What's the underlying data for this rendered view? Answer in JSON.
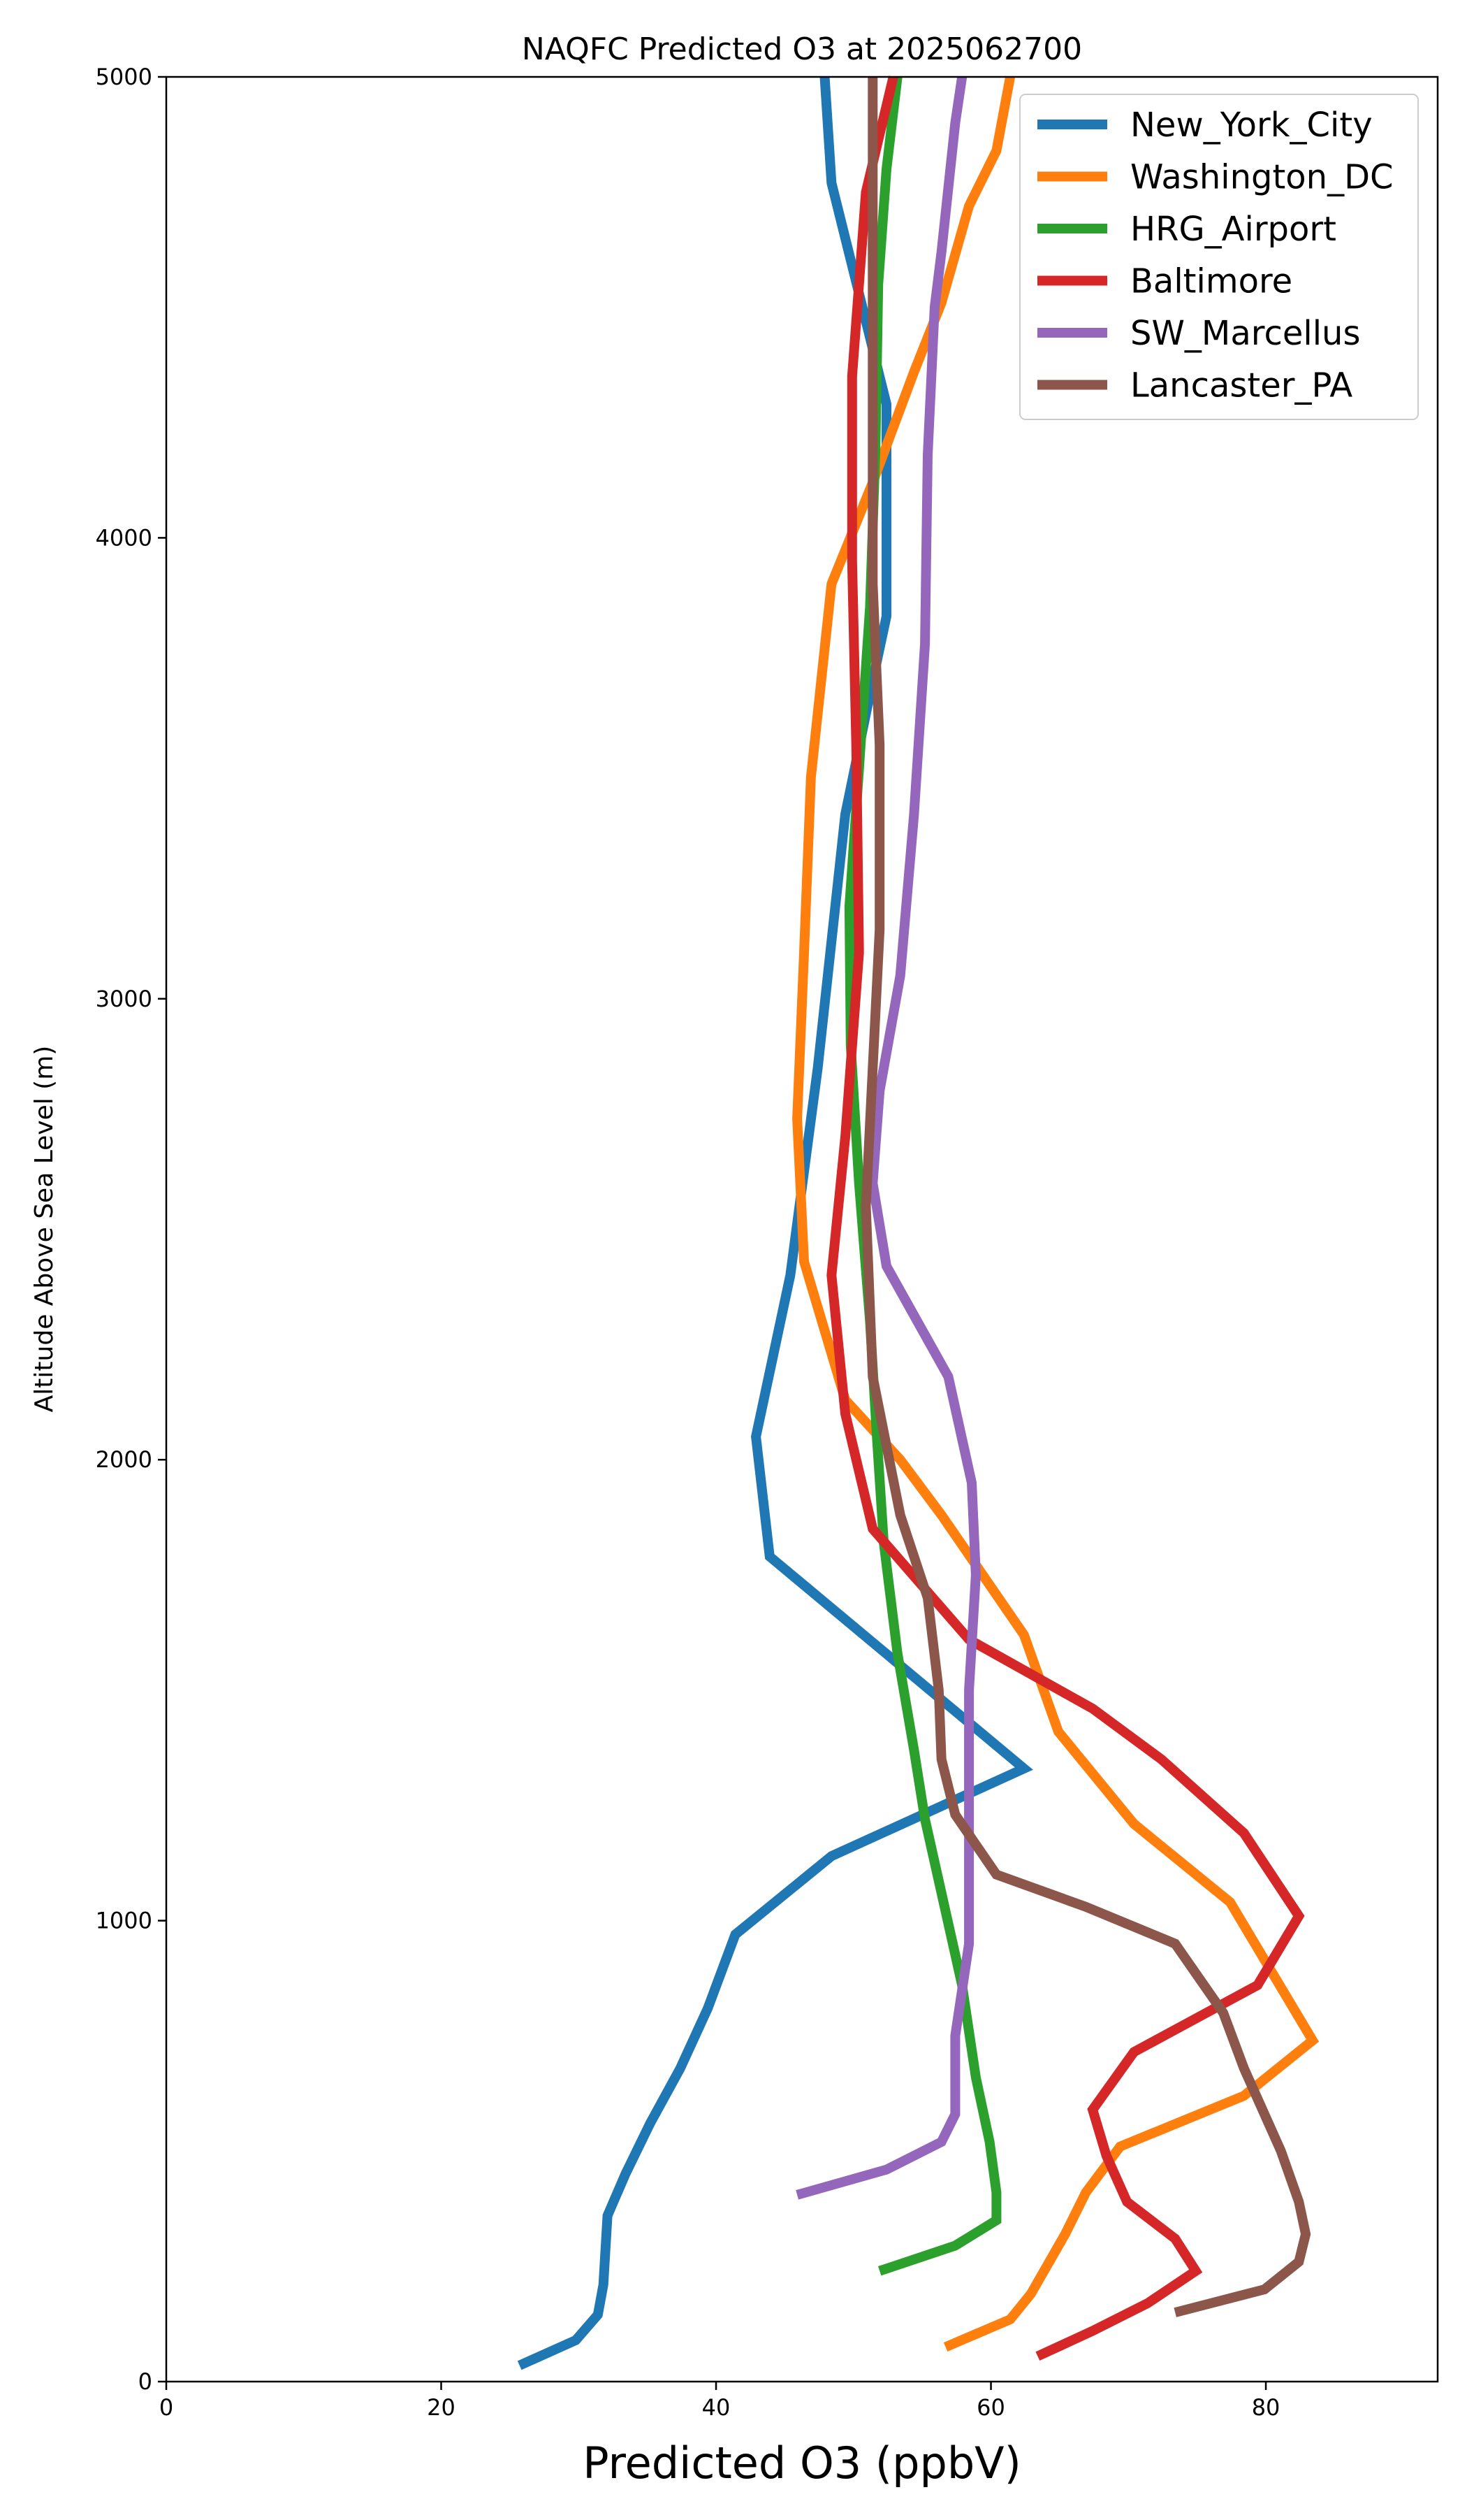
{
  "chart_data": {
    "type": "line",
    "title": "NAQFC Predicted O3 at 2025062700",
    "xlabel": "Predicted O3 (ppbV)",
    "ylabel": "Altitude Above Sea Level (m)",
    "xlim": [
      0,
      92.5
    ],
    "ylim": [
      0,
      5000
    ],
    "xticks": [
      0,
      20,
      40,
      60,
      80
    ],
    "yticks": [
      0,
      1000,
      2000,
      3000,
      4000,
      5000
    ],
    "grid": false,
    "legend_position": "top-right",
    "series": [
      {
        "name": "New_York_City",
        "color": "#1f77b4",
        "points": [
          [
            25.7,
            35
          ],
          [
            29.8,
            90
          ],
          [
            31.4,
            145
          ],
          [
            31.8,
            210
          ],
          [
            32.1,
            360
          ],
          [
            33.4,
            450
          ],
          [
            35.2,
            560
          ],
          [
            37.4,
            680
          ],
          [
            39.4,
            810
          ],
          [
            41.4,
            970
          ],
          [
            48.4,
            1140
          ],
          [
            62.4,
            1330
          ],
          [
            43.9,
            1790
          ],
          [
            42.9,
            2050
          ],
          [
            45.4,
            2400
          ],
          [
            47.4,
            2850
          ],
          [
            49.4,
            3400
          ],
          [
            51.4,
            3690
          ],
          [
            52.4,
            3830
          ],
          [
            52.4,
            4290
          ],
          [
            50.4,
            4530
          ],
          [
            48.4,
            4770
          ],
          [
            47.9,
            5000
          ]
        ]
      },
      {
        "name": "Washington_DC",
        "color": "#ff7f0e",
        "points": [
          [
            56.7,
            75
          ],
          [
            61.4,
            135
          ],
          [
            62.9,
            190
          ],
          [
            65.4,
            320
          ],
          [
            66.9,
            410
          ],
          [
            69.4,
            510
          ],
          [
            78.4,
            620
          ],
          [
            83.4,
            740
          ],
          [
            77.4,
            1040
          ],
          [
            70.4,
            1210
          ],
          [
            64.9,
            1410
          ],
          [
            62.4,
            1620
          ],
          [
            56.4,
            1880
          ],
          [
            53.4,
            2000
          ],
          [
            49.4,
            2130
          ],
          [
            46.4,
            2430
          ],
          [
            45.9,
            2740
          ],
          [
            46.4,
            3100
          ],
          [
            46.9,
            3480
          ],
          [
            48.4,
            3900
          ],
          [
            51.4,
            4120
          ],
          [
            54.4,
            4360
          ],
          [
            56.4,
            4510
          ],
          [
            58.4,
            4720
          ],
          [
            60.4,
            4840
          ],
          [
            61.4,
            5000
          ]
        ]
      },
      {
        "name": "HRG_Airport",
        "color": "#2ca02c",
        "points": [
          [
            51.9,
            240
          ],
          [
            57.4,
            295
          ],
          [
            60.4,
            350
          ],
          [
            60.4,
            410
          ],
          [
            59.9,
            520
          ],
          [
            58.9,
            660
          ],
          [
            57.9,
            860
          ],
          [
            56.4,
            1060
          ],
          [
            55.2,
            1220
          ],
          [
            54.4,
            1370
          ],
          [
            53.2,
            1580
          ],
          [
            52.2,
            1820
          ],
          [
            51.7,
            2050
          ],
          [
            51.2,
            2300
          ],
          [
            50.4,
            2600
          ],
          [
            49.8,
            2900
          ],
          [
            49.7,
            3200
          ],
          [
            50.4,
            3500
          ],
          [
            51.2,
            3850
          ],
          [
            51.6,
            4200
          ],
          [
            51.8,
            4550
          ],
          [
            52.4,
            4800
          ],
          [
            53.2,
            5000
          ]
        ]
      },
      {
        "name": "Baltimore",
        "color": "#d62728",
        "points": [
          [
            63.4,
            55
          ],
          [
            67.4,
            110
          ],
          [
            71.4,
            170
          ],
          [
            74.9,
            240
          ],
          [
            73.4,
            310
          ],
          [
            69.9,
            390
          ],
          [
            68.4,
            490
          ],
          [
            67.4,
            590
          ],
          [
            70.4,
            715
          ],
          [
            79.4,
            860
          ],
          [
            82.4,
            1010
          ],
          [
            78.4,
            1190
          ],
          [
            72.4,
            1350
          ],
          [
            67.4,
            1460
          ],
          [
            58.4,
            1610
          ],
          [
            51.4,
            1850
          ],
          [
            49.4,
            2100
          ],
          [
            48.4,
            2400
          ],
          [
            49.4,
            2700
          ],
          [
            50.4,
            3100
          ],
          [
            50.2,
            3550
          ],
          [
            49.9,
            3950
          ],
          [
            49.9,
            4350
          ],
          [
            50.9,
            4750
          ],
          [
            52.9,
            5000
          ]
        ]
      },
      {
        "name": "SW_Marcellus",
        "color": "#9467bd",
        "points": [
          [
            45.9,
            405
          ],
          [
            52.4,
            460
          ],
          [
            56.4,
            520
          ],
          [
            57.4,
            580
          ],
          [
            57.4,
            750
          ],
          [
            58.4,
            950
          ],
          [
            58.4,
            1200
          ],
          [
            58.4,
            1500
          ],
          [
            58.9,
            1750
          ],
          [
            58.6,
            1950
          ],
          [
            56.9,
            2180
          ],
          [
            52.4,
            2420
          ],
          [
            51.4,
            2600
          ],
          [
            51.9,
            2800
          ],
          [
            53.4,
            3050
          ],
          [
            54.4,
            3400
          ],
          [
            55.2,
            3770
          ],
          [
            55.4,
            4180
          ],
          [
            55.9,
            4500
          ],
          [
            56.4,
            4620
          ],
          [
            57.4,
            4900
          ],
          [
            57.9,
            5000
          ]
        ]
      },
      {
        "name": "Lancaster_PA",
        "color": "#8c564b",
        "points": [
          [
            73.4,
            150
          ],
          [
            79.9,
            200
          ],
          [
            82.4,
            260
          ],
          [
            82.9,
            320
          ],
          [
            82.4,
            390
          ],
          [
            81.1,
            500
          ],
          [
            79.9,
            580
          ],
          [
            78.4,
            680
          ],
          [
            76.9,
            800
          ],
          [
            73.4,
            950
          ],
          [
            66.9,
            1030
          ],
          [
            60.4,
            1100
          ],
          [
            57.4,
            1230
          ],
          [
            56.4,
            1350
          ],
          [
            56.2,
            1500
          ],
          [
            55.4,
            1700
          ],
          [
            53.4,
            1880
          ],
          [
            51.4,
            2180
          ],
          [
            50.9,
            2550
          ],
          [
            51.4,
            2850
          ],
          [
            51.9,
            3150
          ],
          [
            51.9,
            3550
          ],
          [
            51.4,
            3900
          ],
          [
            51.4,
            4300
          ],
          [
            51.4,
            4700
          ],
          [
            51.4,
            5000
          ]
        ]
      }
    ]
  }
}
